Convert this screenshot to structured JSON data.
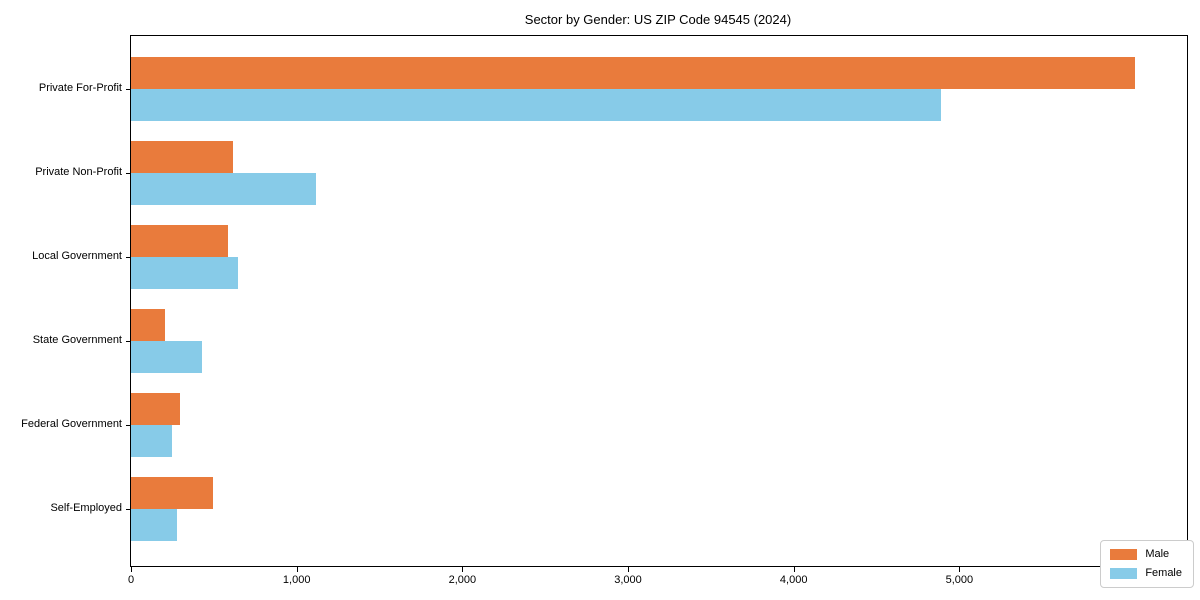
{
  "chart_data": {
    "type": "bar",
    "orientation": "horizontal",
    "title": "Sector by Gender: US ZIP Code 94545 (2024)",
    "categories": [
      "Private For-Profit",
      "Private Non-Profit",
      "Local Government",
      "State Government",
      "Federal Government",
      "Self-Employed"
    ],
    "series": [
      {
        "name": "Male",
        "color": "#e97b3c",
        "values": [
          6060,
          615,
          585,
          205,
          295,
          495
        ]
      },
      {
        "name": "Female",
        "color": "#87cbe8",
        "values": [
          4890,
          1115,
          645,
          430,
          250,
          280
        ]
      }
    ],
    "xlabel": "",
    "ylabel": "",
    "xlim": [
      0,
      6374
    ],
    "x_ticks": [
      0,
      1000,
      2000,
      3000,
      4000,
      5000,
      6000
    ],
    "x_tick_labels": [
      "0",
      "1,000",
      "2,000",
      "3,000",
      "4,000",
      "5,000",
      "6,000"
    ],
    "grid": false,
    "legend": {
      "position": "lower right",
      "entries": [
        "Male",
        "Female"
      ]
    }
  }
}
